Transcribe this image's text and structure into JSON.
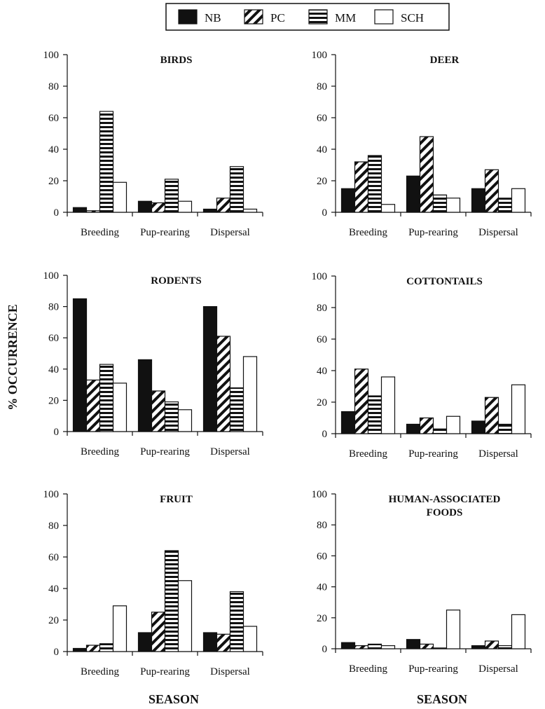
{
  "legend": [
    {
      "name": "NB",
      "pattern": "solid"
    },
    {
      "name": "PC",
      "pattern": "diagonal"
    },
    {
      "name": "MM",
      "pattern": "horizontal"
    },
    {
      "name": "SCH",
      "pattern": "empty"
    }
  ],
  "ylabel": "% OCCURRENCE",
  "xlabel_left": "SEASON",
  "xlabel_right": "SEASON",
  "chart_data": [
    {
      "type": "bar",
      "title": "BIRDS",
      "categories": [
        "Breeding",
        "Pup-rearing",
        "Dispersal"
      ],
      "ylim": [
        0,
        100
      ],
      "yticks": [
        "0",
        "20",
        "40",
        "60",
        "80",
        "100"
      ],
      "series": [
        {
          "name": "NB",
          "values": [
            3,
            7,
            2
          ]
        },
        {
          "name": "PC",
          "values": [
            1,
            6,
            9
          ]
        },
        {
          "name": "MM",
          "values": [
            64,
            21,
            29
          ]
        },
        {
          "name": "SCH",
          "values": [
            19,
            7,
            2
          ]
        }
      ]
    },
    {
      "type": "bar",
      "title": "DEER",
      "categories": [
        "Breeding",
        "Pup-rearing",
        "Dispersal"
      ],
      "ylim": [
        0,
        100
      ],
      "yticks": [
        "0",
        "20",
        "40",
        "60",
        "80",
        "100"
      ],
      "series": [
        {
          "name": "NB",
          "values": [
            15,
            23,
            15
          ]
        },
        {
          "name": "PC",
          "values": [
            32,
            48,
            27
          ]
        },
        {
          "name": "MM",
          "values": [
            36,
            11,
            9
          ]
        },
        {
          "name": "SCH",
          "values": [
            5,
            9,
            15
          ]
        }
      ]
    },
    {
      "type": "bar",
      "title": "RODENTS",
      "categories": [
        "Breeding",
        "Pup-rearing",
        "Dispersal"
      ],
      "ylim": [
        0,
        100
      ],
      "yticks": [
        "0",
        "20",
        "40",
        "60",
        "80",
        "100"
      ],
      "series": [
        {
          "name": "NB",
          "values": [
            85,
            46,
            80
          ]
        },
        {
          "name": "PC",
          "values": [
            33,
            26,
            61
          ]
        },
        {
          "name": "MM",
          "values": [
            43,
            19,
            28
          ]
        },
        {
          "name": "SCH",
          "values": [
            31,
            14,
            48
          ]
        }
      ]
    },
    {
      "type": "bar",
      "title": "COTTONTAILS",
      "categories": [
        "Breeding",
        "Pup-rearing",
        "Dispersal"
      ],
      "ylim": [
        0,
        100
      ],
      "yticks": [
        "0",
        "20",
        "40",
        "60",
        "80",
        "100"
      ],
      "series": [
        {
          "name": "NB",
          "values": [
            14,
            6,
            8
          ]
        },
        {
          "name": "PC",
          "values": [
            41,
            10,
            23
          ]
        },
        {
          "name": "MM",
          "values": [
            24,
            3,
            6
          ]
        },
        {
          "name": "SCH",
          "values": [
            36,
            11,
            31
          ]
        }
      ]
    },
    {
      "type": "bar",
      "title": "FRUIT",
      "categories": [
        "Breeding",
        "Pup-rearing",
        "Dispersal"
      ],
      "ylim": [
        0,
        100
      ],
      "yticks": [
        "0",
        "20",
        "40",
        "60",
        "80",
        "100"
      ],
      "series": [
        {
          "name": "NB",
          "values": [
            2,
            12,
            12
          ]
        },
        {
          "name": "PC",
          "values": [
            4,
            25,
            11
          ]
        },
        {
          "name": "MM",
          "values": [
            5,
            64,
            38
          ]
        },
        {
          "name": "SCH",
          "values": [
            29,
            45,
            16
          ]
        }
      ]
    },
    {
      "type": "bar",
      "title": "HUMAN-ASSOCIATED\nFOODS",
      "categories": [
        "Breeding",
        "Pup-rearing",
        "Dispersal"
      ],
      "ylim": [
        0,
        100
      ],
      "yticks": [
        "0",
        "20",
        "40",
        "60",
        "80",
        "100"
      ],
      "series": [
        {
          "name": "NB",
          "values": [
            4,
            6,
            2
          ]
        },
        {
          "name": "PC",
          "values": [
            2,
            3,
            5
          ]
        },
        {
          "name": "MM",
          "values": [
            3,
            0.5,
            2
          ]
        },
        {
          "name": "SCH",
          "values": [
            2,
            25,
            22
          ]
        }
      ]
    }
  ]
}
